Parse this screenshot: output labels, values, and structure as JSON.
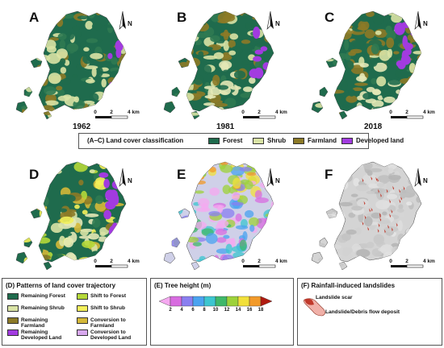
{
  "panels": [
    {
      "label": "A",
      "year": "1962",
      "theme": "landcover",
      "purple": 0.25
    },
    {
      "label": "B",
      "year": "1981",
      "theme": "landcover",
      "purple": 0.6
    },
    {
      "label": "C",
      "year": "2018",
      "theme": "landcover",
      "purple": 1.0
    },
    {
      "label": "D",
      "year": "",
      "theme": "trajectory",
      "purple": 0.8
    },
    {
      "label": "E",
      "year": "",
      "theme": "height",
      "purple": 0
    },
    {
      "label": "F",
      "year": "",
      "theme": "landslide",
      "purple": 0
    }
  ],
  "scale": {
    "ticks": [
      "0",
      "2",
      "4 km"
    ]
  },
  "north": "N",
  "landcover_legend": {
    "title": "(A–C) Land cover classification",
    "items": [
      {
        "label": "Forest",
        "color": "#1f6b4d"
      },
      {
        "label": "Shrub",
        "color": "#d9e3a5"
      },
      {
        "label": "Farmland",
        "color": "#8c7a27"
      },
      {
        "label": "Developed land",
        "color": "#a23be0"
      }
    ]
  },
  "trajectory_legend": {
    "title": "(D) Patterns of land cover trajectory",
    "items": [
      {
        "label": "Remaining Forest",
        "color": "#1f6b4d"
      },
      {
        "label": "Shift to Forest",
        "color": "#b5d93a"
      },
      {
        "label": "Remaining Shrub",
        "color": "#d9e3a5"
      },
      {
        "label": "Shift to Shrub",
        "color": "#f2ef5a"
      },
      {
        "label": "Remaining Farmland",
        "color": "#8c7a27"
      },
      {
        "label": "Conversion to Farmland",
        "color": "#d4b838"
      },
      {
        "label": "Remaining Developed Land",
        "color": "#a23be0"
      },
      {
        "label": "Conversion to Developed Land",
        "color": "#d8a8ee"
      }
    ]
  },
  "height_legend": {
    "title": "(E) Tree height (m)",
    "ticks": [
      "2",
      "4",
      "6",
      "8",
      "10",
      "12",
      "14",
      "16",
      "18"
    ],
    "colors": [
      "#f5a8f0",
      "#d86ce0",
      "#8a7ff0",
      "#4aa3f0",
      "#3cc6d0",
      "#3fb86a",
      "#9dd23a",
      "#f2e03a",
      "#f29a2a",
      "#b01a10"
    ]
  },
  "landslide_legend": {
    "title": "(F) Rainfall-induced landslides",
    "items": [
      {
        "label": "Landslide scar",
        "color": "#c0392b"
      },
      {
        "label": "Landslide/Debris flow deposit",
        "color": "#f0b0a8"
      }
    ]
  }
}
